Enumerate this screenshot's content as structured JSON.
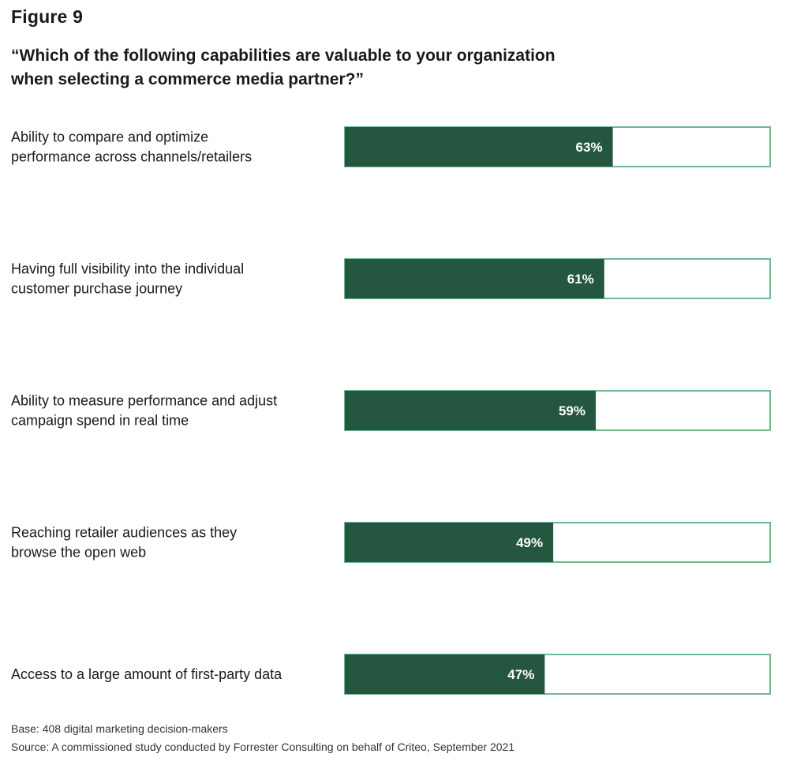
{
  "figure_label": "Figure 9",
  "question": "“Which of the following capabilities are valuable to your organization when selecting a commerce media partner?”",
  "chart_data": {
    "type": "bar",
    "orientation": "horizontal",
    "categories": [
      [
        "Ability to compare and optimize",
        "performance across channels/retailers"
      ],
      [
        "Having full visibility into the individual",
        "customer purchase journey"
      ],
      [
        "Ability to measure performance and adjust",
        "campaign spend in real time"
      ],
      [
        "Reaching retailer audiences as they",
        "browse the open web"
      ],
      [
        "Access to a large amount of first-party data"
      ]
    ],
    "values": [
      63,
      61,
      59,
      49,
      47
    ],
    "value_labels": [
      "63%",
      "61%",
      "59%",
      "49%",
      "47%"
    ],
    "xlim": [
      0,
      100
    ],
    "grid": false,
    "legend": "none",
    "colors": {
      "bar_fill": "#245640",
      "bar_outline": "#6fb98f",
      "value_label": "#ffffff"
    }
  },
  "footnotes": {
    "base": "Base: 408 digital marketing decision-makers",
    "source": "Source: A commissioned study conducted by Forrester Consulting on behalf of Criteo, September 2021"
  }
}
